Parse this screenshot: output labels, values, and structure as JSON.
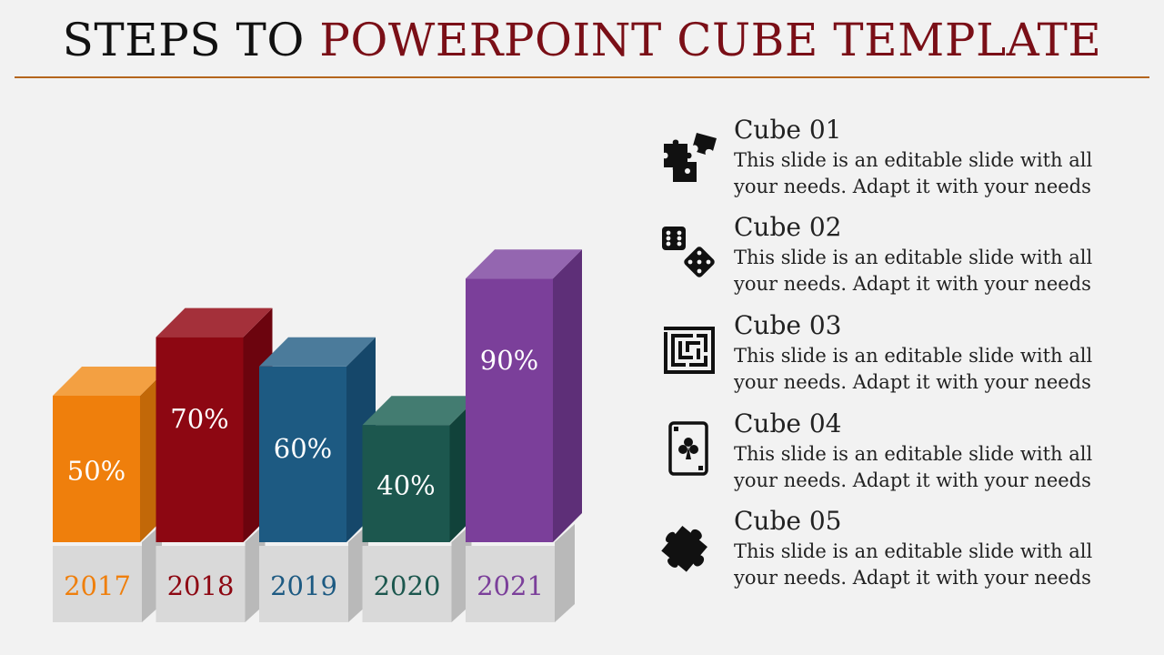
{
  "title": {
    "part1": "STEPS TO ",
    "part2": "POWERPOINT CUBE TEMPLATE"
  },
  "chart_data": {
    "type": "bar",
    "categories": [
      "2017",
      "2018",
      "2019",
      "2020",
      "2021"
    ],
    "values": [
      50,
      70,
      60,
      40,
      90
    ],
    "value_labels": [
      "50%",
      "70%",
      "60%",
      "40%",
      "90%"
    ],
    "colors": {
      "front": [
        "#ef7f0c",
        "#8d0712",
        "#1d5a82",
        "#1c574e",
        "#7b3f9a"
      ],
      "top": [
        "#f3a042",
        "#a4303a",
        "#4b7b9b",
        "#437c71",
        "#9466b0"
      ],
      "side": [
        "#c26808",
        "#6c040e",
        "#15476a",
        "#11423a",
        "#5e2f78"
      ],
      "year": [
        "#ef7f0c",
        "#8d0712",
        "#1d5a82",
        "#1c574e",
        "#7b3f9a"
      ]
    }
  },
  "items": [
    {
      "heading": "Cube 01",
      "icon": "puzzle-pieces-icon",
      "line1": "This slide is an editable slide with all",
      "line2": "your needs. Adapt it with your needs"
    },
    {
      "heading": "Cube 02",
      "icon": "dice-icon",
      "line1": "This slide is an editable slide with all",
      "line2": "your needs. Adapt it with your needs"
    },
    {
      "heading": "Cube 03",
      "icon": "maze-icon",
      "line1": "This slide is an editable slide with all",
      "line2": "your needs. Adapt it with your needs"
    },
    {
      "heading": "Cube 04",
      "icon": "playing-card-club-icon",
      "line1": "This slide is an editable slide with all",
      "line2": "your needs. Adapt it with your needs"
    },
    {
      "heading": "Cube 05",
      "icon": "puzzle-piece-icon",
      "line1": "This slide is an editable slide with all",
      "line2": "your needs. Adapt it with your needs"
    }
  ]
}
